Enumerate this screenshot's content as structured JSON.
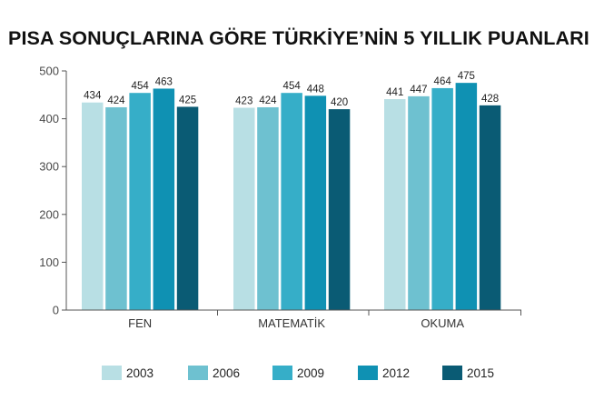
{
  "title": "PISA SONUÇLARINA GÖRE TÜRKİYE’NİN 5 YILLIK PUANLARI",
  "colors": {
    "2003": "#b8dfe4",
    "2006": "#6ec1d0",
    "2009": "#36aec8",
    "2012": "#0f91b3",
    "2015": "#0a5b74",
    "axis": "#555555"
  },
  "chart_data": {
    "type": "bar",
    "title": "PISA SONUÇLARINA GÖRE TÜRKİYE’NİN 5 YILLIK PUANLARI",
    "categories": [
      "FEN",
      "MATEMATİK",
      "OKUMA"
    ],
    "series": [
      {
        "name": "2003",
        "values": [
          434,
          423,
          441
        ]
      },
      {
        "name": "2006",
        "values": [
          424,
          424,
          447
        ]
      },
      {
        "name": "2009",
        "values": [
          454,
          454,
          464
        ]
      },
      {
        "name": "2012",
        "values": [
          463,
          448,
          475
        ]
      },
      {
        "name": "2015",
        "values": [
          425,
          420,
          428
        ]
      }
    ],
    "ylim": [
      0,
      500
    ],
    "yticks": [
      "0",
      "100",
      "200",
      "300",
      "400",
      "500"
    ],
    "grid": false,
    "legend_position": "bottom",
    "data_labels": true
  }
}
